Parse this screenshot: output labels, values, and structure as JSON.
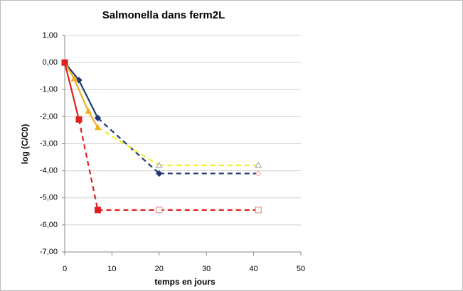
{
  "chart_data": {
    "type": "line",
    "title": "Salmonella dans ferm2L",
    "x_label": "temps en jours",
    "y_label": "log (C/C0)",
    "xlim": [
      0,
      50
    ],
    "xticks": [
      0,
      10,
      20,
      30,
      40,
      50
    ],
    "ylim": [
      -7,
      1
    ],
    "yticks": [
      {
        "value": 1,
        "label": "1,00"
      },
      {
        "value": 0,
        "label": "0,00"
      },
      {
        "value": -1,
        "label": "-1,00"
      },
      {
        "value": -2,
        "label": "-2,00"
      },
      {
        "value": -3,
        "label": "-3,00"
      },
      {
        "value": -4,
        "label": "-4,00"
      },
      {
        "value": -5,
        "label": "-5,00"
      },
      {
        "value": -6,
        "label": "-6,00"
      },
      {
        "value": -7,
        "label": "-7,00"
      }
    ],
    "grid": true,
    "series": [
      {
        "color": "#1f3a70",
        "dash_color": "#1f3a70",
        "marker": "diamond",
        "x": [
          0,
          3,
          7,
          20,
          41
        ],
        "values": [
          0,
          -0.65,
          -2.05,
          -4.1,
          -4.1
        ],
        "dash": [
          false,
          false,
          true,
          true
        ],
        "open": [
          false,
          false,
          false,
          false,
          true
        ]
      },
      {
        "color": "#f0b020",
        "dash_color": "#f5f020",
        "marker": "triangle",
        "x": [
          0,
          2,
          5,
          7,
          20,
          41
        ],
        "values": [
          0,
          -0.6,
          -1.8,
          -2.4,
          -3.8,
          -3.8
        ],
        "dash": [
          false,
          false,
          false,
          true,
          true
        ],
        "open": [
          false,
          false,
          false,
          false,
          true,
          true
        ]
      },
      {
        "color": "#e02020",
        "dash_color": "#e02020",
        "marker": "square",
        "x": [
          0,
          3,
          7,
          20,
          41
        ],
        "values": [
          0,
          -2.1,
          -5.45,
          -5.45,
          -5.45
        ],
        "dash": [
          false,
          true,
          true,
          true
        ],
        "open": [
          false,
          false,
          false,
          true,
          true
        ]
      }
    ]
  }
}
